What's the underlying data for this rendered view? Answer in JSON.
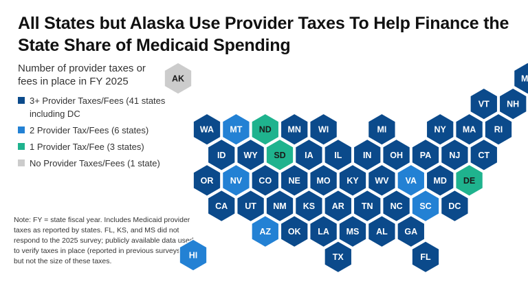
{
  "title": "All States but Alaska Use Provider Taxes To Help Finance the State Share of Medicaid Spending",
  "subtitle": "Number of provider taxes or fees in place in FY 2025",
  "legend": [
    {
      "label": "3+ Provider Taxes/Fees (41 states including DC",
      "color": "#0b4a8b"
    },
    {
      "label": "2 Provider Tax/Fees (6 states)",
      "color": "#2381d4"
    },
    {
      "label": "1 Provider Tax/Fee (3 states)",
      "color": "#1fb38e"
    },
    {
      "label": "No Provider Taxes/Fees (1 state)",
      "color": "#cccccc"
    }
  ],
  "note": "Note: FY = state fiscal year. Includes Medicaid provider taxes as reported by states. FL, KS, and MS did not respond to the 2025 survey; publicly available data used to verify taxes in place (reported in previous surveys) but not the size of these taxes.",
  "category_colors": {
    "3plus": "#0b4a8b",
    "2": "#2381d4",
    "1": "#1fb38e",
    "0": "#cccccc"
  },
  "states": [
    {
      "abbr": "AK",
      "row": 0,
      "col": 0,
      "cat": "0"
    },
    {
      "abbr": "ME",
      "row": 0,
      "col": 11,
      "cat": "3plus"
    },
    {
      "abbr": "VT",
      "row": 1,
      "col": 9,
      "cat": "3plus"
    },
    {
      "abbr": "NH",
      "row": 1,
      "col": 10,
      "cat": "3plus"
    },
    {
      "abbr": "WA",
      "row": 2,
      "col": 0,
      "cat": "3plus"
    },
    {
      "abbr": "MT",
      "row": 2,
      "col": 1,
      "cat": "2"
    },
    {
      "abbr": "ND",
      "row": 2,
      "col": 2,
      "cat": "1"
    },
    {
      "abbr": "MN",
      "row": 2,
      "col": 3,
      "cat": "3plus"
    },
    {
      "abbr": "WI",
      "row": 2,
      "col": 4,
      "cat": "3plus"
    },
    {
      "abbr": "MI",
      "row": 2,
      "col": 6,
      "cat": "3plus"
    },
    {
      "abbr": "NY",
      "row": 2,
      "col": 8,
      "cat": "3plus"
    },
    {
      "abbr": "MA",
      "row": 2,
      "col": 9,
      "cat": "3plus"
    },
    {
      "abbr": "RI",
      "row": 2,
      "col": 10,
      "cat": "3plus"
    },
    {
      "abbr": "ID",
      "row": 3,
      "col": 0,
      "cat": "3plus"
    },
    {
      "abbr": "WY",
      "row": 3,
      "col": 1,
      "cat": "3plus"
    },
    {
      "abbr": "SD",
      "row": 3,
      "col": 2,
      "cat": "1"
    },
    {
      "abbr": "IA",
      "row": 3,
      "col": 3,
      "cat": "3plus"
    },
    {
      "abbr": "IL",
      "row": 3,
      "col": 4,
      "cat": "3plus"
    },
    {
      "abbr": "IN",
      "row": 3,
      "col": 5,
      "cat": "3plus"
    },
    {
      "abbr": "OH",
      "row": 3,
      "col": 6,
      "cat": "3plus"
    },
    {
      "abbr": "PA",
      "row": 3,
      "col": 7,
      "cat": "3plus"
    },
    {
      "abbr": "NJ",
      "row": 3,
      "col": 8,
      "cat": "3plus"
    },
    {
      "abbr": "CT",
      "row": 3,
      "col": 9,
      "cat": "3plus"
    },
    {
      "abbr": "OR",
      "row": 4,
      "col": 0,
      "cat": "3plus"
    },
    {
      "abbr": "NV",
      "row": 4,
      "col": 1,
      "cat": "2"
    },
    {
      "abbr": "CO",
      "row": 4,
      "col": 2,
      "cat": "3plus"
    },
    {
      "abbr": "NE",
      "row": 4,
      "col": 3,
      "cat": "3plus"
    },
    {
      "abbr": "MO",
      "row": 4,
      "col": 4,
      "cat": "3plus"
    },
    {
      "abbr": "KY",
      "row": 4,
      "col": 5,
      "cat": "3plus"
    },
    {
      "abbr": "WV",
      "row": 4,
      "col": 6,
      "cat": "3plus"
    },
    {
      "abbr": "VA",
      "row": 4,
      "col": 7,
      "cat": "2"
    },
    {
      "abbr": "MD",
      "row": 4,
      "col": 8,
      "cat": "3plus"
    },
    {
      "abbr": "DE",
      "row": 4,
      "col": 9,
      "cat": "1"
    },
    {
      "abbr": "CA",
      "row": 5,
      "col": 0,
      "cat": "3plus"
    },
    {
      "abbr": "UT",
      "row": 5,
      "col": 1,
      "cat": "3plus"
    },
    {
      "abbr": "NM",
      "row": 5,
      "col": 2,
      "cat": "3plus"
    },
    {
      "abbr": "KS",
      "row": 5,
      "col": 3,
      "cat": "3plus"
    },
    {
      "abbr": "AR",
      "row": 5,
      "col": 4,
      "cat": "3plus"
    },
    {
      "abbr": "TN",
      "row": 5,
      "col": 5,
      "cat": "3plus"
    },
    {
      "abbr": "NC",
      "row": 5,
      "col": 6,
      "cat": "3plus"
    },
    {
      "abbr": "SC",
      "row": 5,
      "col": 7,
      "cat": "2"
    },
    {
      "abbr": "DC",
      "row": 5,
      "col": 8,
      "cat": "3plus"
    },
    {
      "abbr": "AZ",
      "row": 6,
      "col": 2,
      "cat": "2"
    },
    {
      "abbr": "OK",
      "row": 6,
      "col": 3,
      "cat": "3plus"
    },
    {
      "abbr": "LA",
      "row": 6,
      "col": 4,
      "cat": "3plus"
    },
    {
      "abbr": "MS",
      "row": 6,
      "col": 5,
      "cat": "3plus"
    },
    {
      "abbr": "AL",
      "row": 6,
      "col": 6,
      "cat": "3plus"
    },
    {
      "abbr": "GA",
      "row": 6,
      "col": 7,
      "cat": "3plus"
    },
    {
      "abbr": "HI",
      "row": 7,
      "col": 0,
      "cat": "2"
    },
    {
      "abbr": "TX",
      "row": 7,
      "col": 4,
      "cat": "3plus"
    },
    {
      "abbr": "FL",
      "row": 7,
      "col": 7,
      "cat": "3plus"
    }
  ]
}
